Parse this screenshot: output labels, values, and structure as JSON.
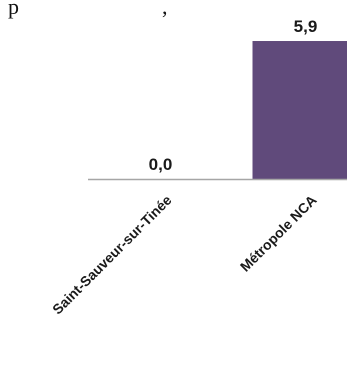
{
  "header_fragment": "p                    ́      ,",
  "chart_data": {
    "type": "bar",
    "categories": [
      "Saint-Sauveur-sur-Tinée",
      "Métropole NCA"
    ],
    "values": [
      0.0,
      5.9
    ],
    "value_labels": [
      "0,0",
      "5,9"
    ],
    "ylim": [
      0,
      6.2
    ],
    "colors": {
      "bar": "#604a7b",
      "axis": "#a6a6a6"
    },
    "grid": false,
    "legend": "none"
  }
}
